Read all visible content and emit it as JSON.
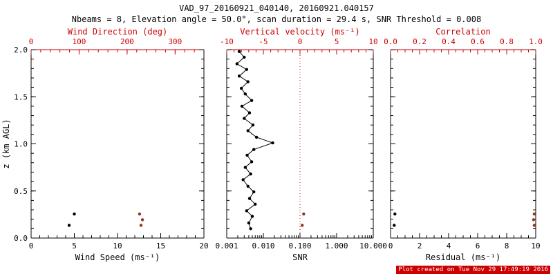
{
  "title": "VAD_97_20160921_040140, 20160921.040157",
  "subtitle": "Nbeams = 8, Elevation angle = 50.0°, scan duration = 29.4 s, SNR Threshold = 0.008",
  "footer": {
    "text": "Plot created on Tue Nov 29 17:49:19 2016"
  },
  "colors": {
    "black": "#000000",
    "red": "#cc0000",
    "dark_red": "#993322",
    "footer_bg": "#cc0000",
    "footer_fg": "#ffffff"
  },
  "chart_data": [
    {
      "name": "wind-speed-panel",
      "type": "scatter",
      "x_axis": {
        "label": "Wind Speed (ms⁻¹)",
        "scale": "linear",
        "lim": [
          0,
          20
        ],
        "ticks": [
          0,
          5,
          10,
          15,
          20
        ],
        "tick_labels": [
          "0",
          "5",
          "10",
          "15",
          "20"
        ],
        "minor_div": 5
      },
      "top_axis": {
        "label": "Wind Direction (deg)",
        "scale": "linear",
        "lim": [
          0,
          360
        ],
        "ticks": [
          0,
          100,
          200,
          300
        ],
        "tick_labels": [
          "0",
          "100",
          "200",
          "300"
        ],
        "minor_div": 5
      },
      "y_axis": {
        "label": "z (km AGL)",
        "lim": [
          0,
          2
        ],
        "ticks": [
          0,
          0.5,
          1,
          1.5,
          2
        ],
        "tick_labels": [
          "0.0",
          "0.5",
          "1.0",
          "1.5",
          "2.0"
        ],
        "show_labels": true,
        "minor_step": 0.1
      },
      "series": [
        {
          "name": "wind-speed-points",
          "axis": "bottom",
          "color": "black",
          "marker": true,
          "line": false,
          "points": [
            [
              4.4,
              0.135
            ],
            [
              5.0,
              0.255
            ]
          ]
        },
        {
          "name": "wind-direction-points",
          "axis": "top",
          "color": "dark_red",
          "marker": true,
          "line": false,
          "points": [
            [
              229,
              0.135
            ],
            [
              232,
              0.195
            ],
            [
              226,
              0.255
            ]
          ]
        }
      ]
    },
    {
      "name": "snr-panel",
      "type": "line",
      "x_axis": {
        "label": "SNR",
        "scale": "log",
        "lim": [
          0.001,
          10
        ],
        "ticks": [
          0.001,
          0.01,
          0.1,
          1,
          10
        ],
        "tick_labels": [
          "0.001",
          "0.010",
          "0.100",
          "1.000",
          "10.000"
        ]
      },
      "top_axis": {
        "label": "Vertical velocity (ms⁻¹)",
        "scale": "linear",
        "lim": [
          -10,
          10
        ],
        "ticks": [
          -10,
          -5,
          0,
          5,
          10
        ],
        "tick_labels": [
          "-10",
          "-5",
          "0",
          "5",
          "10"
        ],
        "minor_div": 5
      },
      "y_axis": {
        "lim": [
          0,
          2
        ],
        "ticks": [
          0,
          0.5,
          1,
          1.5,
          2
        ],
        "tick_labels": [
          "0.0",
          "0.5",
          "1.0",
          "1.5",
          "2.0"
        ],
        "show_labels": false,
        "minor_step": 0.1
      },
      "ref_line": {
        "axis": "top",
        "value": 0,
        "color": "red",
        "style": "dotted"
      },
      "series": [
        {
          "name": "snr-profile",
          "axis": "bottom",
          "color": "black",
          "marker": true,
          "line": true,
          "points": [
            [
              0.0045,
              0.1
            ],
            [
              0.004,
              0.16
            ],
            [
              0.005,
              0.23
            ],
            [
              0.0035,
              0.29
            ],
            [
              0.006,
              0.36
            ],
            [
              0.0042,
              0.42
            ],
            [
              0.0055,
              0.49
            ],
            [
              0.0038,
              0.55
            ],
            [
              0.0028,
              0.62
            ],
            [
              0.0045,
              0.68
            ],
            [
              0.0032,
              0.75
            ],
            [
              0.0048,
              0.81
            ],
            [
              0.0036,
              0.88
            ],
            [
              0.0055,
              0.94
            ],
            [
              0.018,
              1.01
            ],
            [
              0.0065,
              1.07
            ],
            [
              0.0038,
              1.14
            ],
            [
              0.0052,
              1.2
            ],
            [
              0.003,
              1.27
            ],
            [
              0.0042,
              1.33
            ],
            [
              0.0026,
              1.4
            ],
            [
              0.0048,
              1.46
            ],
            [
              0.0032,
              1.53
            ],
            [
              0.0025,
              1.59
            ],
            [
              0.0038,
              1.66
            ],
            [
              0.0022,
              1.72
            ],
            [
              0.0035,
              1.79
            ],
            [
              0.0019,
              1.85
            ],
            [
              0.003,
              1.92
            ],
            [
              0.0022,
              1.98
            ]
          ]
        },
        {
          "name": "vertical-velocity-points",
          "axis": "top",
          "color": "dark_red",
          "marker": true,
          "line": false,
          "points": [
            [
              0.3,
              0.135
            ],
            [
              0.5,
              0.255
            ]
          ]
        }
      ]
    },
    {
      "name": "residual-panel",
      "type": "scatter",
      "x_axis": {
        "label": "Residual (ms⁻¹)",
        "scale": "linear",
        "lim": [
          0,
          10
        ],
        "ticks": [
          0,
          2,
          4,
          6,
          8,
          10
        ],
        "tick_labels": [
          "0",
          "2",
          "4",
          "6",
          "8",
          "10"
        ],
        "minor_div": 4
      },
      "top_axis": {
        "label": "Correlation",
        "scale": "linear",
        "lim": [
          0,
          1
        ],
        "ticks": [
          0,
          0.2,
          0.4,
          0.6,
          0.8,
          1
        ],
        "tick_labels": [
          "0.0",
          "0.2",
          "0.4",
          "0.6",
          "0.8",
          "1.0"
        ],
        "minor_div": 4
      },
      "y_axis": {
        "lim": [
          0,
          2
        ],
        "ticks": [
          0,
          0.5,
          1,
          1.5,
          2
        ],
        "tick_labels": [
          "0.0",
          "0.5",
          "1.0",
          "1.5",
          "2.0"
        ],
        "show_labels": false,
        "minor_step": 0.1
      },
      "series": [
        {
          "name": "residual-points",
          "axis": "bottom",
          "color": "black",
          "marker": true,
          "line": false,
          "points": [
            [
              0.25,
              0.135
            ],
            [
              0.3,
              0.255
            ]
          ]
        },
        {
          "name": "correlation-points",
          "axis": "top",
          "color": "dark_red",
          "marker": true,
          "line": false,
          "points": [
            [
              0.99,
              0.135
            ],
            [
              0.985,
              0.195
            ],
            [
              0.99,
              0.255
            ]
          ]
        }
      ]
    }
  ]
}
